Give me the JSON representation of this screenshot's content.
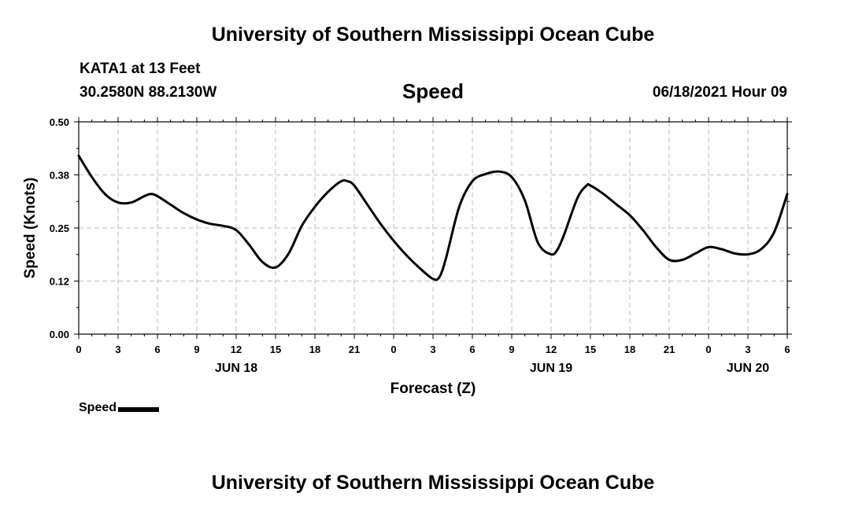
{
  "header": {
    "title": "University of Southern Mississippi Ocean Cube",
    "station": "KATA1 at 13 Feet",
    "coords": "30.2580N  88.2130W",
    "date_time": "06/18/2021 Hour 09"
  },
  "footer": {
    "title": "University of Southern Mississippi Ocean Cube"
  },
  "legend": {
    "label": "Speed"
  },
  "colors": {
    "line": "#000000",
    "grid": "#bdbdbd",
    "axis": "#000000"
  },
  "chart_data": {
    "type": "line",
    "title": "Speed",
    "xlabel": "Forecast (Z)",
    "ylabel": "Speed (Knots)",
    "xlim": [
      0,
      54
    ],
    "ylim": [
      0,
      0.5
    ],
    "grid": true,
    "legend_position": "bottom-left",
    "y_ticks": [
      {
        "value": 0.0,
        "label": "0.00"
      },
      {
        "value": 0.125,
        "label": "0.12"
      },
      {
        "value": 0.25,
        "label": "0.25"
      },
      {
        "value": 0.375,
        "label": "0.38"
      },
      {
        "value": 0.5,
        "label": "0.50"
      }
    ],
    "x_ticks": [
      {
        "value": 0,
        "label": "0"
      },
      {
        "value": 3,
        "label": "3"
      },
      {
        "value": 6,
        "label": "6"
      },
      {
        "value": 9,
        "label": "9"
      },
      {
        "value": 12,
        "label": "12"
      },
      {
        "value": 15,
        "label": "15"
      },
      {
        "value": 18,
        "label": "18"
      },
      {
        "value": 21,
        "label": "21"
      },
      {
        "value": 24,
        "label": "0"
      },
      {
        "value": 27,
        "label": "3"
      },
      {
        "value": 30,
        "label": "6"
      },
      {
        "value": 33,
        "label": "9"
      },
      {
        "value": 36,
        "label": "12"
      },
      {
        "value": 39,
        "label": "15"
      },
      {
        "value": 42,
        "label": "18"
      },
      {
        "value": 45,
        "label": "21"
      },
      {
        "value": 48,
        "label": "0"
      },
      {
        "value": 51,
        "label": "3"
      },
      {
        "value": 54,
        "label": "6"
      }
    ],
    "date_labels": [
      {
        "value": 12,
        "label": "JUN 18"
      },
      {
        "value": 36,
        "label": "JUN 19"
      },
      {
        "value": 51,
        "label": "JUN 20"
      }
    ],
    "series": [
      {
        "name": "Speed",
        "x": [
          0,
          1,
          2,
          3,
          4,
          5,
          5.5,
          6,
          7,
          8,
          9,
          10,
          11,
          12,
          13,
          14,
          15,
          16,
          17,
          18,
          19,
          20,
          20.5,
          21,
          22,
          23,
          24,
          25,
          26,
          27,
          27.5,
          28,
          29,
          30,
          31,
          32,
          33,
          34,
          35,
          36,
          36.5,
          37,
          38,
          38.7,
          39,
          40,
          41,
          42,
          43,
          44,
          45,
          46,
          47,
          48,
          49,
          50,
          51,
          52,
          53,
          54
        ],
        "y": [
          0.42,
          0.37,
          0.33,
          0.31,
          0.31,
          0.325,
          0.33,
          0.325,
          0.305,
          0.285,
          0.27,
          0.26,
          0.255,
          0.245,
          0.21,
          0.17,
          0.157,
          0.19,
          0.255,
          0.3,
          0.335,
          0.36,
          0.36,
          0.35,
          0.305,
          0.26,
          0.22,
          0.185,
          0.155,
          0.13,
          0.135,
          0.18,
          0.3,
          0.36,
          0.377,
          0.383,
          0.37,
          0.315,
          0.215,
          0.188,
          0.2,
          0.235,
          0.32,
          0.35,
          0.35,
          0.33,
          0.305,
          0.28,
          0.245,
          0.205,
          0.175,
          0.175,
          0.19,
          0.205,
          0.2,
          0.19,
          0.188,
          0.2,
          0.24,
          0.33
        ]
      }
    ]
  }
}
